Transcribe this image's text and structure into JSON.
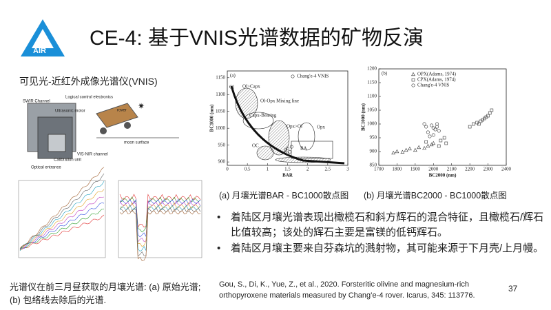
{
  "header": {
    "logo": "AIR",
    "title": "CE-4: 基于VNIS光谱数据的矿物反演"
  },
  "instrument": {
    "title": "可见光-近红外成像光谱仪(VNIS)",
    "labels": [
      "SWIR Channel",
      "Logical control electronics",
      "Ultrasonic motor",
      "rover",
      "moon surface",
      "VIS-NIR channel",
      "Calibration unit",
      "Optical entrance"
    ]
  },
  "spectra_caption": [
    "光谱仪在前三月昼获取的月壤光谱: (a) 原始光谱;",
    "(b) 包络线去除后的光谱."
  ],
  "chart_data": [
    {
      "type": "scatter",
      "panel": "(a)",
      "caption": "(a) 月壤光谱BAR - BC1000散点图",
      "x_label": "BAR",
      "y_label": "BC1000 (nm)",
      "xlim": [
        0,
        3
      ],
      "ylim": [
        890,
        1170
      ],
      "xticks": [
        0,
        0.5,
        1,
        1.5,
        2,
        2.5,
        3
      ],
      "yticks": [
        900,
        950,
        1000,
        1050,
        1100,
        1150
      ],
      "annotations": [
        "Ol",
        "Ol>Capx",
        "Ol-Opx Mixing line",
        "Capx-Bearing",
        "Opx>Ol",
        "Opx",
        "OC",
        "BA"
      ],
      "series": [
        {
          "name": "Chang'e-4 VNIS",
          "color": "#333333",
          "marker": "circle",
          "x": [
            1.45,
            1.5,
            1.55,
            1.5,
            1.6
          ],
          "values": [
            935,
            940,
            930,
            925,
            945
          ]
        }
      ]
    },
    {
      "type": "scatter",
      "panel": "(b)",
      "caption": "(b) 月壤光谱BC2000 - BC1000散点图",
      "x_label": "BC2000 (nm)",
      "y_label": "BC1000 (nm)",
      "xlim": [
        1700,
        2400
      ],
      "ylim": [
        850,
        1200
      ],
      "xticks": [
        1700,
        1800,
        1900,
        2000,
        2100,
        2200,
        2300,
        2400
      ],
      "yticks": [
        850,
        900,
        950,
        1000,
        1050,
        1100,
        1150,
        1200
      ],
      "series": [
        {
          "name": "OPX(Adams, 1974)",
          "color": "#333333",
          "marker": "triangle",
          "x": [
            1780,
            1800,
            1830,
            1850,
            1870,
            1900,
            1920,
            1950,
            1970,
            1990,
            2000
          ],
          "values": [
            895,
            900,
            898,
            905,
            910,
            905,
            915,
            912,
            920,
            925,
            930
          ]
        },
        {
          "name": "CPX(Adams, 1974)",
          "color": "#333333",
          "marker": "square",
          "x": [
            1960,
            2030,
            2040,
            2060,
            2070,
            2200,
            2220,
            2240,
            2250,
            2260,
            2270,
            2280,
            2290,
            2300,
            2310,
            2320
          ],
          "values": [
            935,
            920,
            940,
            950,
            930,
            990,
            1000,
            1005,
            1000,
            1010,
            1015,
            1020,
            1025,
            1030,
            1040,
            1050
          ]
        },
        {
          "name": "Chang'e-4 VNIS",
          "color": "#333333",
          "marker": "circle",
          "x": [
            1950,
            1960,
            1970,
            1990,
            2000,
            2010,
            2020,
            2030,
            1980,
            2000,
            2020
          ],
          "values": [
            1000,
            990,
            970,
            995,
            985,
            980,
            1000,
            975,
            955,
            960,
            990
          ]
        }
      ]
    }
  ],
  "bullets": [
    "着陆区月壤光谱表现出橄榄石和斜方辉石的混合特征，且橄榄石/辉石比值较高；该处的辉石主要是富镁的低钙辉石。",
    "着陆区月壤主要来自芬森坑的溅射物，其可能来源于下月壳/上月幔。"
  ],
  "reference": "Gou, S., Di, K., Yue, Z., et al., 2020. Forsteritic olivine and magnesium-rich orthopyroxene materials measured by Chang’e-4 rover. Icarus, 345: 113776.",
  "page_number": "37"
}
